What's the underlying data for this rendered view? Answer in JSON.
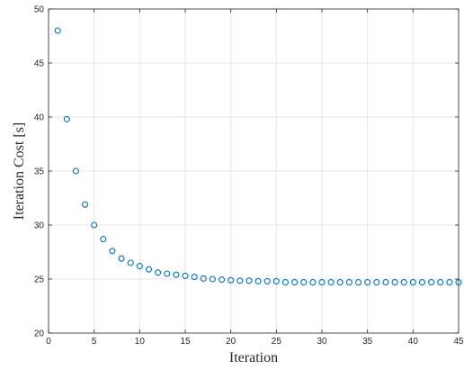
{
  "chart_data": {
    "type": "scatter",
    "xlabel": "Iteration",
    "ylabel": "Iteration Cost [s]",
    "xlim": [
      0,
      45
    ],
    "ylim": [
      20,
      50
    ],
    "xticks": [
      0,
      5,
      10,
      15,
      20,
      25,
      30,
      35,
      40,
      45
    ],
    "yticks": [
      20,
      25,
      30,
      35,
      40,
      45,
      50
    ],
    "grid": true,
    "marker": "circle-open",
    "color": "#0072bd",
    "series": [
      {
        "x": [
          1,
          2,
          3,
          4,
          5,
          6,
          7,
          8,
          9,
          10,
          11,
          12,
          13,
          14,
          15,
          16,
          17,
          18,
          19,
          20,
          21,
          22,
          23,
          24,
          25,
          26,
          27,
          28,
          29,
          30,
          31,
          32,
          33,
          34,
          35,
          36,
          37,
          38,
          39,
          40,
          41,
          42,
          43,
          44,
          45
        ],
        "y": [
          48.0,
          39.8,
          35.0,
          31.9,
          30.0,
          28.7,
          27.6,
          26.9,
          26.5,
          26.2,
          25.9,
          25.6,
          25.5,
          25.4,
          25.3,
          25.2,
          25.05,
          25.0,
          24.95,
          24.9,
          24.85,
          24.85,
          24.8,
          24.8,
          24.8,
          24.7,
          24.7,
          24.7,
          24.7,
          24.7,
          24.7,
          24.7,
          24.7,
          24.7,
          24.7,
          24.7,
          24.7,
          24.7,
          24.7,
          24.7,
          24.7,
          24.7,
          24.7,
          24.7,
          24.7
        ]
      }
    ]
  }
}
